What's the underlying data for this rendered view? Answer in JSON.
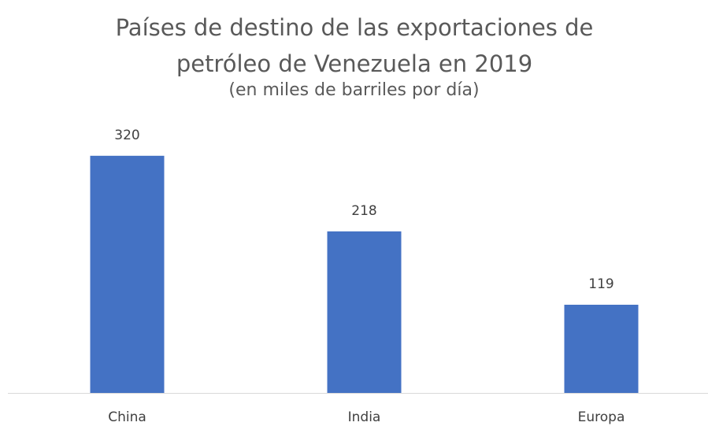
{
  "chart_data": {
    "type": "bar",
    "title": "Países de destino de las exportaciones de petróleo de Venezuela en 2019",
    "subtitle": "(en miles de barriles por día)",
    "categories": [
      "China",
      "India",
      "Europa"
    ],
    "values": [
      320,
      218,
      119
    ],
    "color": "#4472c4",
    "ylim": [
      0,
      340
    ]
  }
}
